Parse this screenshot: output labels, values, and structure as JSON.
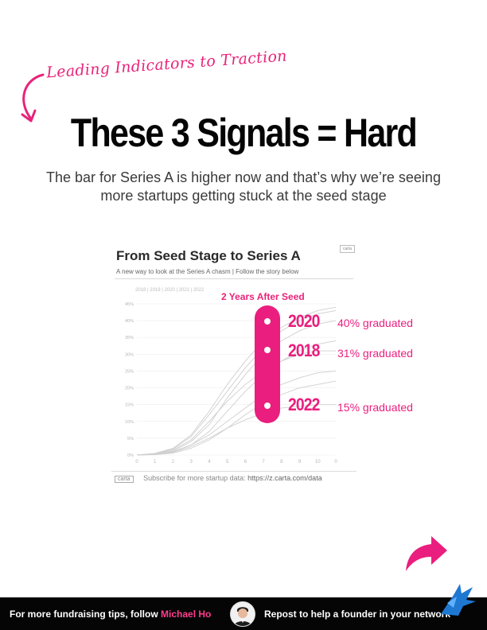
{
  "header": {
    "kicker": "Leading Indicators to Traction",
    "headline": "These 3 Signals = Hard",
    "subtitle": "The bar for Series A is higher now and that’s why we’re seeing more startups getting stuck at the seed stage"
  },
  "card": {
    "title": "From Seed Stage to Series A",
    "subtitle": "A new way to look at the Series A chasm | Follow the story below",
    "badge": "carta",
    "years_strip": "2018 | 2019 | 2020 | 2021 | 2022",
    "footer_logo": "carta",
    "footer_text": "Subscribe for more startup data:",
    "footer_url": "https://z.carta.com/data"
  },
  "chart_data": {
    "type": "line",
    "title": "From Seed Stage to Series A",
    "x": [
      0,
      1,
      2,
      3,
      4,
      5,
      6,
      7,
      8,
      9,
      10,
      11
    ],
    "x_ticks": [
      "0",
      "1",
      "2",
      "3",
      "4",
      "5",
      "6",
      "7",
      "8",
      "9",
      "10",
      "0"
    ],
    "y_ticks": [
      "0%",
      "5%",
      "10%",
      "15%",
      "20%",
      "25%",
      "30%",
      "35%",
      "40%",
      "45%"
    ],
    "ylim": [
      0,
      45
    ],
    "grid": true,
    "series": [
      {
        "values": [
          0,
          0.3,
          1.2,
          4,
          9,
          17,
          24,
          30,
          34,
          37,
          39,
          40
        ]
      },
      {
        "values": [
          0,
          0.4,
          1.5,
          4.5,
          10,
          16,
          21,
          25,
          28,
          30,
          31,
          31
        ]
      },
      {
        "values": [
          0,
          0.2,
          0.8,
          2.5,
          5,
          8,
          10.5,
          12.5,
          14,
          14.5,
          15,
          15
        ]
      },
      {
        "values": [
          0,
          0.3,
          1.8,
          5.5,
          12,
          19,
          26,
          32,
          37,
          40,
          42,
          43
        ]
      },
      {
        "values": [
          0,
          0.2,
          1,
          3,
          7,
          13,
          19,
          24,
          28,
          31,
          33,
          34
        ]
      },
      {
        "values": [
          0,
          0.1,
          0.6,
          2,
          4.5,
          8,
          12,
          15.5,
          18,
          20,
          21,
          22
        ]
      },
      {
        "values": [
          0,
          0.2,
          0.9,
          3,
          6,
          10,
          14,
          18,
          21,
          23,
          24.5,
          25
        ]
      },
      {
        "values": [
          0,
          0.5,
          2,
          6,
          13,
          21,
          28,
          34,
          38,
          41,
          43,
          44
        ]
      }
    ]
  },
  "annotation": {
    "title": "2 Years After Seed",
    "items": [
      {
        "year": "2020",
        "text": "40% graduated"
      },
      {
        "year": "2018",
        "text": "31% graduated"
      },
      {
        "year": "2022",
        "text": "15% graduated"
      }
    ]
  },
  "footer": {
    "cta_prefix": "For more fundraising tips, follow",
    "author": "Michael Ho",
    "cta_right": "Repost to help a founder in your network"
  },
  "colors": {
    "accent": "#ea1e7e",
    "footer_bg": "#050505"
  }
}
